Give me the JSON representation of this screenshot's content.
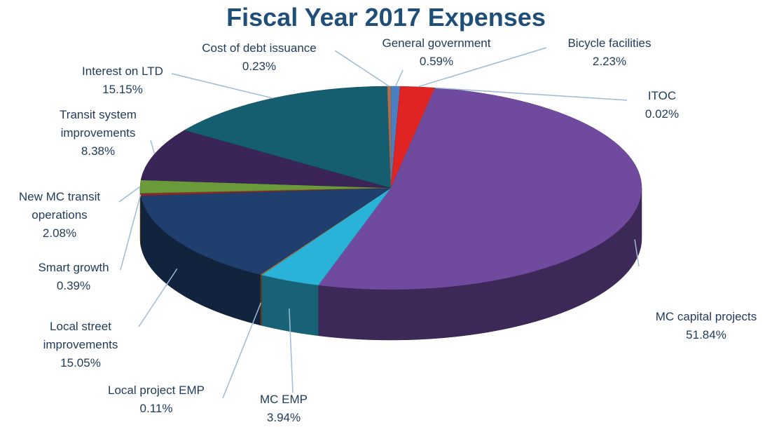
{
  "chart_data": {
    "type": "pie",
    "title": "Fiscal Year 2017 Expenses",
    "categories": [
      "General government",
      "Bicycle facilities",
      "ITOC",
      "MC capital projects",
      "MC EMP",
      "Local project EMP",
      "Local street improvements",
      "Smart growth",
      "New MC transit operations",
      "Transit system improvements",
      "Interest on LTD",
      "Cost of debt issuance"
    ],
    "values": [
      0.59,
      2.23,
      0.02,
      51.84,
      3.94,
      0.11,
      15.05,
      0.39,
      2.08,
      8.38,
      15.15,
      0.23
    ],
    "value_labels": [
      "0.59%",
      "2.23%",
      "0.02%",
      "51.84%",
      "3.94%",
      "0.11%",
      "15.05%",
      "0.39%",
      "2.08%",
      "8.38%",
      "15.15%",
      "0.23%"
    ],
    "colors": [
      "#4a7fc1",
      "#e02424",
      "#9a9a9a",
      "#6f4a9e",
      "#2ab3d8",
      "#b0703a",
      "#1f3f6e",
      "#8b2a2a",
      "#6a9a3a",
      "#3b2458",
      "#155e70",
      "#b07050"
    ]
  }
}
